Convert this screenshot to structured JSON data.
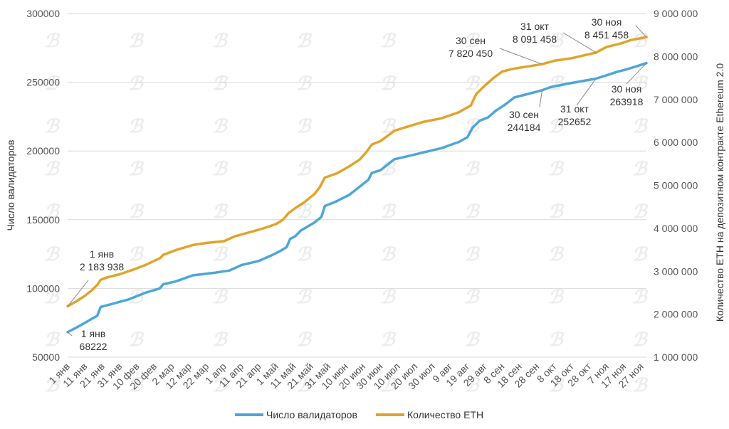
{
  "chart_data": {
    "type": "line",
    "left_axis": {
      "title": "Число валидаторов",
      "range": [
        50000,
        300000
      ],
      "ticks": [
        50000,
        100000,
        150000,
        200000,
        250000,
        300000
      ],
      "tick_labels": [
        "50000",
        "100000",
        "150000",
        "200000",
        "250000",
        "300000"
      ]
    },
    "right_axis": {
      "title": "Количество ETH на депозитном контракте Ethereum 2.0",
      "range": [
        1000000,
        9000000
      ],
      "ticks": [
        1000000,
        2000000,
        3000000,
        4000000,
        5000000,
        6000000,
        7000000,
        8000000,
        9000000
      ],
      "tick_labels": [
        "1 000 000",
        "2 000 000",
        "3 000 000",
        "4 000 000",
        "5 000 000",
        "6 000 000",
        "7 000 000",
        "8 000 000",
        "9 000 000"
      ]
    },
    "x_range": [
      0,
      333
    ],
    "x_ticks": [
      {
        "day": 0,
        "label": "1 янв"
      },
      {
        "day": 10,
        "label": "11 янв"
      },
      {
        "day": 20,
        "label": "21 янв"
      },
      {
        "day": 30,
        "label": "31 янв"
      },
      {
        "day": 40,
        "label": "10 фев"
      },
      {
        "day": 50,
        "label": "20 фев"
      },
      {
        "day": 60,
        "label": "2 мар"
      },
      {
        "day": 70,
        "label": "12 мар"
      },
      {
        "day": 80,
        "label": "22 мар"
      },
      {
        "day": 90,
        "label": "1 апр"
      },
      {
        "day": 100,
        "label": "11 апр"
      },
      {
        "day": 110,
        "label": "21 апр"
      },
      {
        "day": 120,
        "label": "1 май"
      },
      {
        "day": 130,
        "label": "11 май"
      },
      {
        "day": 140,
        "label": "21 май"
      },
      {
        "day": 150,
        "label": "31 май"
      },
      {
        "day": 160,
        "label": "10 июн"
      },
      {
        "day": 170,
        "label": "20 июн"
      },
      {
        "day": 180,
        "label": "30 июн"
      },
      {
        "day": 190,
        "label": "10 июл"
      },
      {
        "day": 200,
        "label": "20 июл"
      },
      {
        "day": 210,
        "label": "30 июл"
      },
      {
        "day": 220,
        "label": "9 авг"
      },
      {
        "day": 230,
        "label": "19 авг"
      },
      {
        "day": 240,
        "label": "29 авг"
      },
      {
        "day": 250,
        "label": "8 сен"
      },
      {
        "day": 260,
        "label": "18 сен"
      },
      {
        "day": 270,
        "label": "28 сен"
      },
      {
        "day": 280,
        "label": "8 окт"
      },
      {
        "day": 290,
        "label": "18 окт"
      },
      {
        "day": 300,
        "label": "28 окт"
      },
      {
        "day": 310,
        "label": "7 ноя"
      },
      {
        "day": 320,
        "label": "17 ноя"
      },
      {
        "day": 330,
        "label": "27 ноя"
      }
    ],
    "series": [
      {
        "name": "Число валидаторов",
        "axis": "left",
        "color": "#4da6d8",
        "points": [
          [
            0,
            68222
          ],
          [
            5,
            71500
          ],
          [
            10,
            75000
          ],
          [
            14,
            78000
          ],
          [
            17,
            80000
          ],
          [
            19,
            86500
          ],
          [
            25,
            88500
          ],
          [
            35,
            92000
          ],
          [
            45,
            97000
          ],
          [
            53,
            100000
          ],
          [
            55,
            103000
          ],
          [
            62,
            105000
          ],
          [
            72,
            109500
          ],
          [
            85,
            111500
          ],
          [
            93,
            113000
          ],
          [
            100,
            117000
          ],
          [
            110,
            120000
          ],
          [
            118,
            124500
          ],
          [
            122,
            127000
          ],
          [
            126,
            130000
          ],
          [
            128,
            136000
          ],
          [
            131,
            138000
          ],
          [
            134,
            142000
          ],
          [
            142,
            148000
          ],
          [
            146,
            152000
          ],
          [
            148,
            160000
          ],
          [
            154,
            163000
          ],
          [
            162,
            168000
          ],
          [
            168,
            174000
          ],
          [
            173,
            179000
          ],
          [
            175,
            184000
          ],
          [
            180,
            186000
          ],
          [
            184,
            190000
          ],
          [
            188,
            194000
          ],
          [
            195,
            196000
          ],
          [
            205,
            199000
          ],
          [
            215,
            202000
          ],
          [
            225,
            206500
          ],
          [
            230,
            210000
          ],
          [
            233,
            217000
          ],
          [
            237,
            222000
          ],
          [
            242,
            224500
          ],
          [
            246,
            229000
          ],
          [
            252,
            234000
          ],
          [
            257,
            239000
          ],
          [
            265,
            241500
          ],
          [
            273,
            244184
          ],
          [
            278,
            246500
          ],
          [
            288,
            249000
          ],
          [
            304,
            252652
          ],
          [
            310,
            255000
          ],
          [
            316,
            257500
          ],
          [
            322,
            259500
          ],
          [
            327,
            261500
          ],
          [
            333,
            263918
          ]
        ]
      },
      {
        "name": "Количество ETH",
        "axis": "right",
        "color": "#e0a42c",
        "points": [
          [
            0,
            2183938
          ],
          [
            5,
            2300000
          ],
          [
            10,
            2430000
          ],
          [
            14,
            2560000
          ],
          [
            17,
            2680000
          ],
          [
            19,
            2800000
          ],
          [
            23,
            2860000
          ],
          [
            30,
            2930000
          ],
          [
            38,
            3040000
          ],
          [
            45,
            3150000
          ],
          [
            53,
            3300000
          ],
          [
            55,
            3380000
          ],
          [
            62,
            3490000
          ],
          [
            72,
            3610000
          ],
          [
            80,
            3660000
          ],
          [
            90,
            3700000
          ],
          [
            96,
            3810000
          ],
          [
            104,
            3900000
          ],
          [
            112,
            3990000
          ],
          [
            120,
            4100000
          ],
          [
            124,
            4200000
          ],
          [
            127,
            4350000
          ],
          [
            131,
            4470000
          ],
          [
            136,
            4600000
          ],
          [
            142,
            4800000
          ],
          [
            145,
            4950000
          ],
          [
            148,
            5180000
          ],
          [
            155,
            5280000
          ],
          [
            162,
            5440000
          ],
          [
            168,
            5600000
          ],
          [
            172,
            5780000
          ],
          [
            175,
            5950000
          ],
          [
            180,
            6030000
          ],
          [
            184,
            6150000
          ],
          [
            188,
            6270000
          ],
          [
            195,
            6360000
          ],
          [
            205,
            6480000
          ],
          [
            215,
            6560000
          ],
          [
            225,
            6700000
          ],
          [
            232,
            6860000
          ],
          [
            235,
            7120000
          ],
          [
            240,
            7320000
          ],
          [
            245,
            7500000
          ],
          [
            250,
            7650000
          ],
          [
            257,
            7720000
          ],
          [
            265,
            7770000
          ],
          [
            273,
            7820450
          ],
          [
            280,
            7900000
          ],
          [
            290,
            7960000
          ],
          [
            304,
            8091458
          ],
          [
            310,
            8220000
          ],
          [
            318,
            8300000
          ],
          [
            324,
            8380000
          ],
          [
            333,
            8451458
          ]
        ]
      }
    ],
    "annotations": [
      {
        "series": 1,
        "day": 0,
        "line1": "1 янв",
        "line2": "2 183 938"
      },
      {
        "series": 0,
        "day": 0,
        "line1": "1 янв",
        "line2": "68222"
      },
      {
        "series": 1,
        "day": 273,
        "line1": "30 сен",
        "line2": "7 820 450"
      },
      {
        "series": 1,
        "day": 304,
        "line1": "31 окт",
        "line2": "8 091 458"
      },
      {
        "series": 1,
        "day": 333,
        "line1": "30 ноя",
        "line2": "8 451 458"
      },
      {
        "series": 0,
        "day": 273,
        "line1": "30 сен",
        "line2": "244184"
      },
      {
        "series": 0,
        "day": 304,
        "line1": "31 окт",
        "line2": "252652"
      },
      {
        "series": 0,
        "day": 333,
        "line1": "30 ноя",
        "line2": "263918"
      }
    ],
    "grid": true,
    "legend_position": "bottom-center"
  }
}
